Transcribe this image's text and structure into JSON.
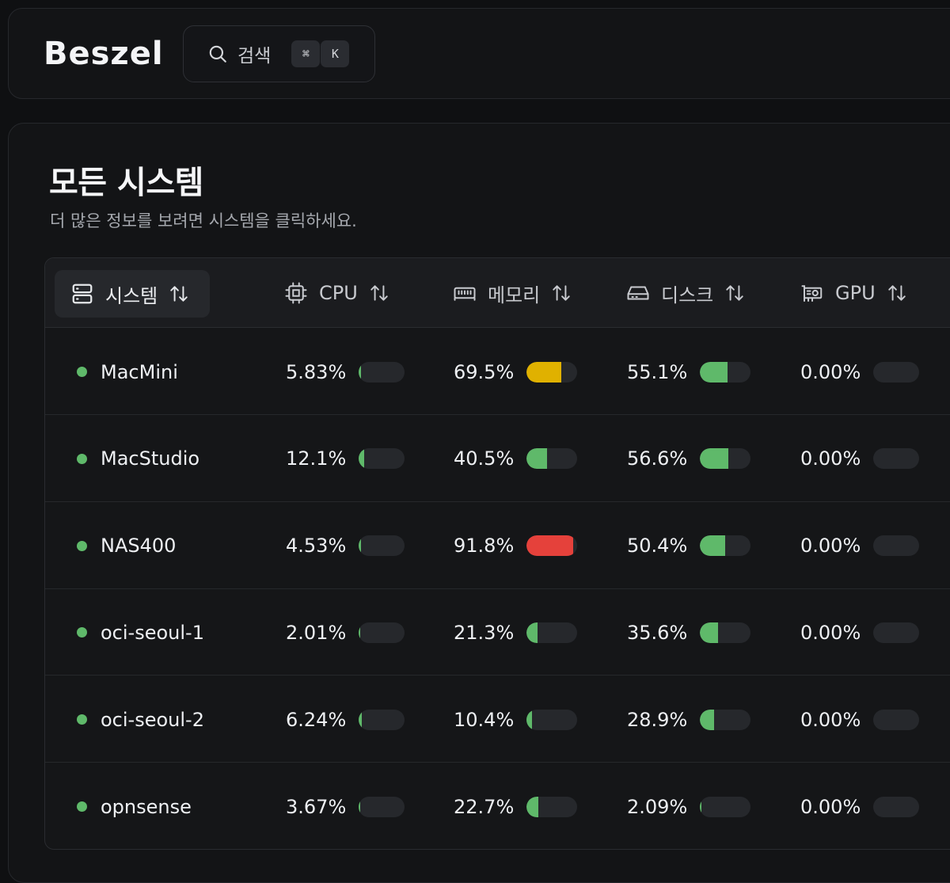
{
  "header": {
    "logo": "Beszel",
    "search": {
      "label": "검색",
      "kbd_cmd": "⌘",
      "kbd_key": "K"
    }
  },
  "page": {
    "title": "모든 시스템",
    "subtitle": "더 많은 정보를 보려면 시스템을 클릭하세요."
  },
  "table": {
    "columns": {
      "system": "시스템",
      "cpu": "CPU",
      "memory": "메모리",
      "disk": "디스크",
      "gpu": "GPU"
    },
    "rows": [
      {
        "name": "MacMini",
        "status_color": "#5fb96a",
        "cpu": "5.83%",
        "cpu_value": 5.83,
        "mem": "69.5%",
        "mem_value": 69.5,
        "disk": "55.1%",
        "disk_value": 55.1,
        "gpu": "0.00%",
        "gpu_value": 0
      },
      {
        "name": "MacStudio",
        "status_color": "#5fb96a",
        "cpu": "12.1%",
        "cpu_value": 12.1,
        "mem": "40.5%",
        "mem_value": 40.5,
        "disk": "56.6%",
        "disk_value": 56.6,
        "gpu": "0.00%",
        "gpu_value": 0
      },
      {
        "name": "NAS400",
        "status_color": "#5fb96a",
        "cpu": "4.53%",
        "cpu_value": 4.53,
        "mem": "91.8%",
        "mem_value": 91.8,
        "disk": "50.4%",
        "disk_value": 50.4,
        "gpu": "0.00%",
        "gpu_value": 0
      },
      {
        "name": "oci-seoul-1",
        "status_color": "#5fb96a",
        "cpu": "2.01%",
        "cpu_value": 2.01,
        "mem": "21.3%",
        "mem_value": 21.3,
        "disk": "35.6%",
        "disk_value": 35.6,
        "gpu": "0.00%",
        "gpu_value": 0
      },
      {
        "name": "oci-seoul-2",
        "status_color": "#5fb96a",
        "cpu": "6.24%",
        "cpu_value": 6.24,
        "mem": "10.4%",
        "mem_value": 10.4,
        "disk": "28.9%",
        "disk_value": 28.9,
        "gpu": "0.00%",
        "gpu_value": 0
      },
      {
        "name": "opnsense",
        "status_color": "#5fb96a",
        "cpu": "3.67%",
        "cpu_value": 3.67,
        "mem": "22.7%",
        "mem_value": 22.7,
        "disk": "2.09%",
        "disk_value": 2.09,
        "gpu": "0.00%",
        "gpu_value": 0
      }
    ]
  },
  "colors": {
    "ok": "#5fb96a",
    "warn": "#e0b100",
    "crit": "#e5413b",
    "bar_track": "#26282c"
  }
}
